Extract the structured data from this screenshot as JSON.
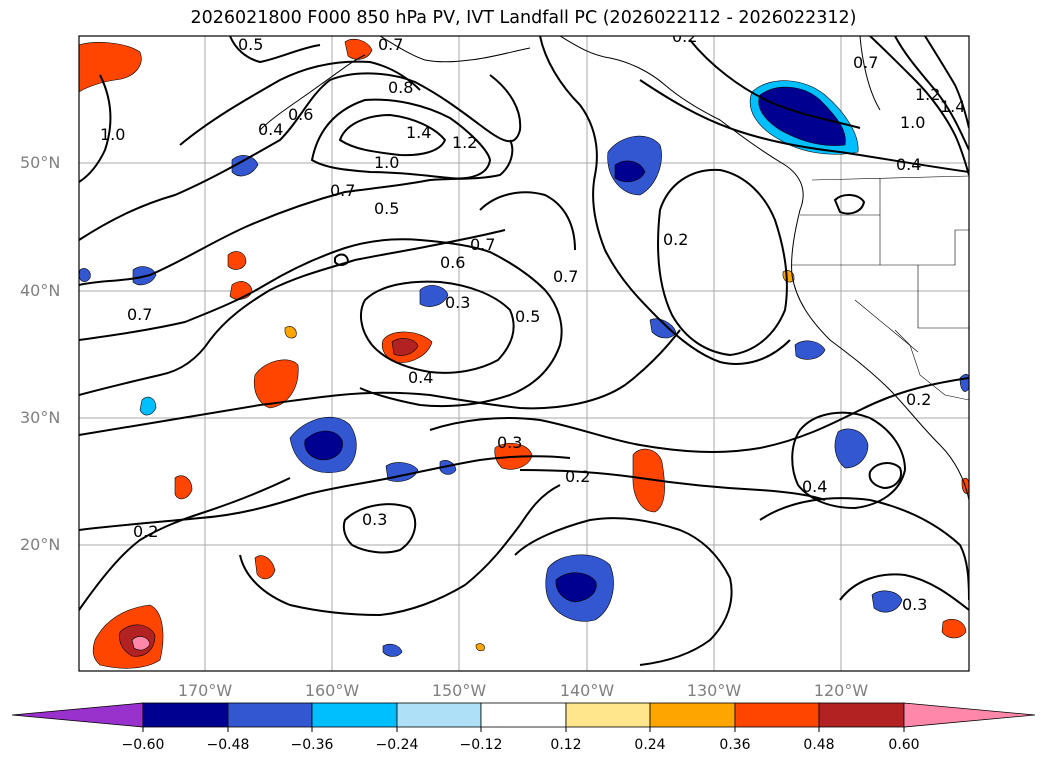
{
  "title": "2026021800 F000 850 hPa PV, IVT Landfall PC (2026022112 - 2026022312)",
  "lat_labels": [
    "50°N",
    "40°N",
    "30°N",
    "20°N"
  ],
  "lon_labels": [
    "170°W",
    "160°W",
    "150°W",
    "140°W",
    "130°W",
    "120°W"
  ],
  "colorbar": {
    "colors": [
      "#9932cc",
      "#000090",
      "#3257d1",
      "#00bfff",
      "#aee1f8",
      "#ffffff",
      "#ffe68c",
      "#ffa500",
      "#ff4500",
      "#b22222",
      "#ff88aa"
    ],
    "labels": [
      "−0.60",
      "−0.48",
      "−0.36",
      "−0.24",
      "−0.12",
      "0.12",
      "0.24",
      "0.36",
      "0.48",
      "0.60"
    ]
  },
  "contour_labels": [
    "0.5",
    "0.7",
    "0.8",
    "0.6",
    "0.4",
    "1.4",
    "1.2",
    "1.0",
    "1.0",
    "0.7",
    "0.5",
    "0.7",
    "0.6",
    "0.3",
    "0.5",
    "0.7",
    "0.4",
    "0.2",
    "0.7",
    "0.3",
    "0.2",
    "0.3",
    "0.2",
    "0.4",
    "0.3",
    "0.7",
    "1.2",
    "1.4",
    "1.0",
    "0.4",
    "0.2",
    "0.2"
  ],
  "gridlines": "on"
}
